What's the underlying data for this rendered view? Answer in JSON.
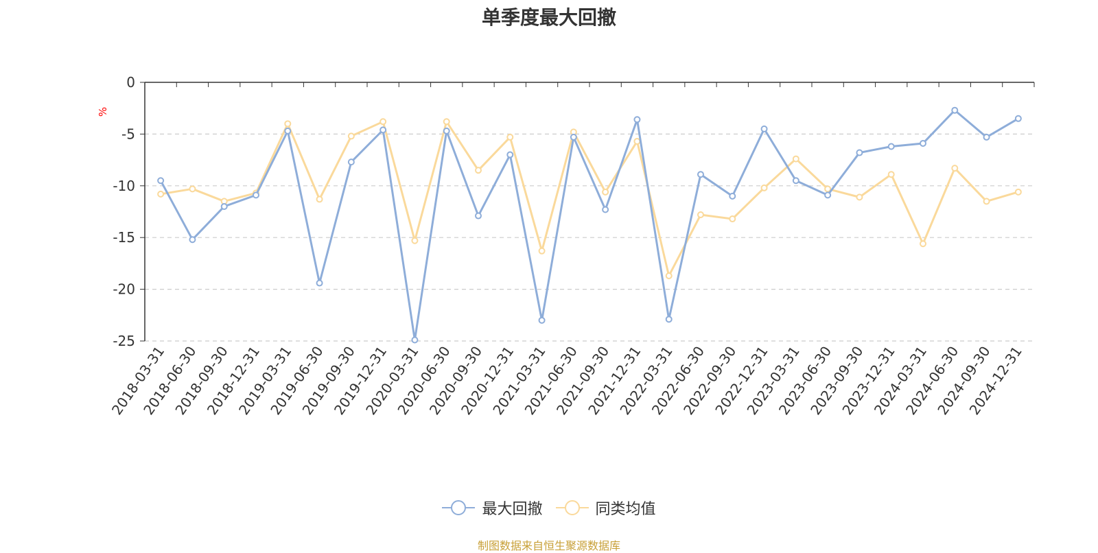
{
  "chart_data": {
    "type": "line",
    "title": "单季度最大回撤",
    "ylabel": "%",
    "ylim": [
      -25,
      0
    ],
    "yticks": [
      0,
      -5,
      -10,
      -15,
      -20,
      -25
    ],
    "grid": true,
    "legend_position": "bottom",
    "x": [
      "2018-03-31",
      "2018-06-30",
      "2018-09-30",
      "2018-12-31",
      "2019-03-31",
      "2019-06-30",
      "2019-09-30",
      "2019-12-31",
      "2020-03-31",
      "2020-06-30",
      "2020-09-30",
      "2020-12-31",
      "2021-03-31",
      "2021-06-30",
      "2021-09-30",
      "2021-12-31",
      "2022-03-31",
      "2022-06-30",
      "2022-09-30",
      "2022-12-31",
      "2023-03-31",
      "2023-06-30",
      "2023-09-30",
      "2023-12-31",
      "2024-03-31",
      "2024-06-30",
      "2024-09-30",
      "2024-12-31"
    ],
    "series": [
      {
        "name": "最大回撤",
        "color": "#8eadd9",
        "values": [
          -9.5,
          -15.2,
          -12.0,
          -10.9,
          -4.7,
          -19.4,
          -7.7,
          -4.6,
          -24.9,
          -4.7,
          -12.9,
          -7.0,
          -23.0,
          -5.3,
          -12.3,
          -3.6,
          -22.9,
          -8.9,
          -11.0,
          -4.5,
          -9.5,
          -10.9,
          -6.8,
          -6.2,
          -5.9,
          -2.7,
          -5.3,
          -3.5
        ]
      },
      {
        "name": "同类均值",
        "color": "#fad99b",
        "values": [
          -10.8,
          -10.3,
          -11.5,
          -10.7,
          -4.0,
          -11.3,
          -5.2,
          -3.8,
          -15.3,
          -3.8,
          -8.5,
          -5.3,
          -16.3,
          -4.8,
          -10.6,
          -5.7,
          -18.7,
          -12.8,
          -13.2,
          -10.2,
          -7.4,
          -10.3,
          -11.1,
          -8.9,
          -15.6,
          -8.3,
          -11.5,
          -10.6
        ]
      }
    ]
  },
  "source_note": "制图数据来自恒生聚源数据库"
}
